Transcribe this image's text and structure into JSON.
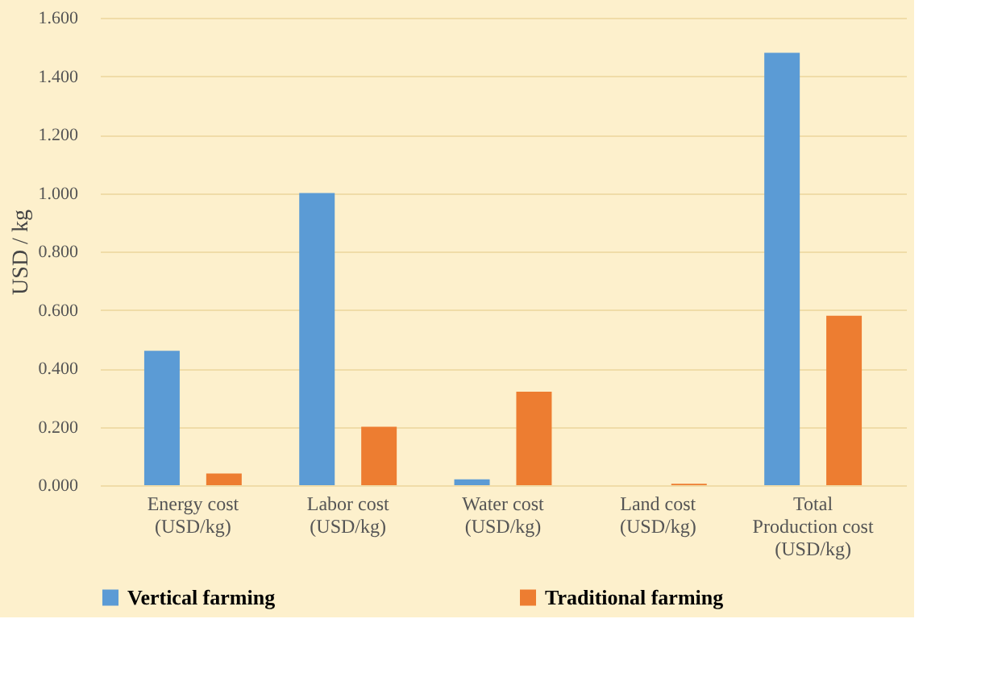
{
  "chart_data": {
    "type": "bar",
    "ylabel": "USD / kg",
    "categories": [
      "Energy cost\n(USD/kg)",
      "Labor cost\n(USD/kg)",
      "Water cost\n(USD/kg)",
      "Land cost\n(USD/kg)",
      "Total\nProduction cost\n(USD/kg)"
    ],
    "series": [
      {
        "name": "Vertical farming",
        "color": "#5b9bd5",
        "values": [
          0.46,
          1.0,
          0.02,
          0,
          1.48
        ]
      },
      {
        "name": "Traditional farming",
        "color": "#ed7d31",
        "values": [
          0.04,
          0.2,
          0.32,
          0.005,
          0.58
        ]
      }
    ],
    "ylim": [
      0,
      1.6
    ],
    "yticks": [
      {
        "value": 0,
        "label": "0.000"
      },
      {
        "value": 0.2,
        "label": "0.200"
      },
      {
        "value": 0.4,
        "label": "0.400"
      },
      {
        "value": 0.6,
        "label": "0.600"
      },
      {
        "value": 0.8,
        "label": "0.800"
      },
      {
        "value": 1.0,
        "label": "1.000"
      },
      {
        "value": 1.2,
        "label": "1.200"
      },
      {
        "value": 1.4,
        "label": "1.400"
      },
      {
        "value": 1.6,
        "label": "1.600"
      }
    ],
    "grid": "y",
    "legend": "bottom"
  }
}
